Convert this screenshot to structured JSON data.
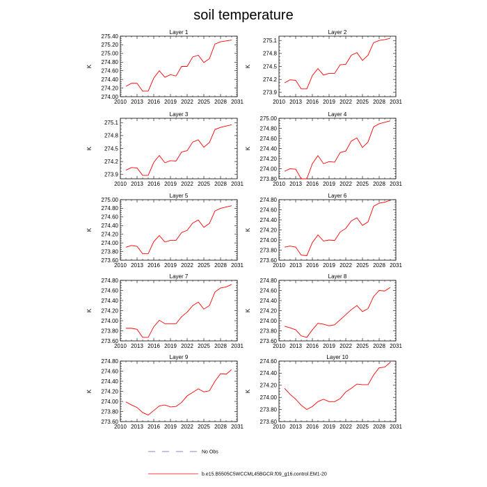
{
  "chart_data": {
    "type": "line",
    "title": "soil temperature",
    "x_ticks": [
      2010,
      2013,
      2016,
      2019,
      2022,
      2025,
      2028,
      2031
    ],
    "years": [
      2011,
      2012,
      2013,
      2014,
      2015,
      2016,
      2017,
      2018,
      2019,
      2020,
      2021,
      2022,
      2023,
      2024,
      2025,
      2026,
      2027,
      2028,
      2029,
      2030
    ],
    "series_color": "#ff0000",
    "legend": [
      {
        "label": "No Obs",
        "style": "dashed",
        "color": "#6060c0"
      },
      {
        "label": "b.e15.B5505C5WCCML45BGCR.f09_g16.control.EM1-20",
        "style": "solid",
        "color": "#ff0000"
      }
    ],
    "panels": [
      {
        "title": "Layer 1",
        "ylabel": "K",
        "ylim": [
          274.0,
          275.4
        ],
        "yticks": [
          "275.40",
          "275.20",
          "275.00",
          "274.80",
          "274.60",
          "274.40",
          "274.20",
          "274.00"
        ],
        "ytick_values": [
          275.4,
          275.2,
          275.0,
          274.8,
          274.6,
          274.4,
          274.2,
          274.0
        ],
        "values": [
          274.24,
          274.31,
          274.31,
          274.13,
          274.13,
          274.43,
          274.6,
          274.45,
          274.51,
          274.48,
          274.7,
          274.7,
          274.92,
          274.96,
          274.79,
          274.88,
          275.22,
          275.27,
          275.29,
          275.31
        ]
      },
      {
        "title": "Layer 2",
        "ylabel": "K",
        "ylim": [
          273.8,
          275.2
        ],
        "yticks": [
          "275.1",
          "274.8",
          "274.5",
          "274.2",
          "273.9"
        ],
        "ytick_values": [
          275.1,
          274.8,
          274.5,
          274.2,
          273.9
        ],
        "values": [
          274.12,
          274.19,
          274.18,
          273.98,
          273.98,
          274.29,
          274.45,
          274.3,
          274.34,
          274.34,
          274.54,
          274.55,
          274.76,
          274.82,
          274.64,
          274.76,
          275.05,
          275.1,
          275.12,
          275.15
        ]
      },
      {
        "title": "Layer 3",
        "ylabel": "K",
        "ylim": [
          273.8,
          275.2
        ],
        "yticks": [
          "275.1",
          "274.8",
          "274.5",
          "274.2",
          "273.9"
        ],
        "ytick_values": [
          275.1,
          274.8,
          274.5,
          274.2,
          273.9
        ],
        "values": [
          274.0,
          274.06,
          274.05,
          273.88,
          273.88,
          274.18,
          274.34,
          274.17,
          274.22,
          274.21,
          274.42,
          274.45,
          274.65,
          274.7,
          274.53,
          274.64,
          274.94,
          274.99,
          275.02,
          275.05
        ]
      },
      {
        "title": "Layer 4",
        "ylabel": "K",
        "ylim": [
          273.8,
          275.0
        ],
        "yticks": [
          "275.00",
          "274.80",
          "274.60",
          "274.40",
          "274.20",
          "274.00",
          "273.80"
        ],
        "ytick_values": [
          275.0,
          274.8,
          274.6,
          274.4,
          274.2,
          274.0,
          273.8
        ],
        "values": [
          273.95,
          274.0,
          273.99,
          273.8,
          273.8,
          274.1,
          274.26,
          274.1,
          274.14,
          274.13,
          274.32,
          274.35,
          274.55,
          274.61,
          274.42,
          274.53,
          274.83,
          274.89,
          274.92,
          274.95
        ]
      },
      {
        "title": "Layer 5",
        "ylabel": "K",
        "ylim": [
          273.6,
          275.0
        ],
        "yticks": [
          "275.00",
          "274.80",
          "274.60",
          "274.40",
          "274.20",
          "274.00",
          "273.80",
          "273.60"
        ],
        "ytick_values": [
          275.0,
          274.8,
          274.6,
          274.4,
          274.2,
          274.0,
          273.8,
          273.6
        ],
        "values": [
          273.9,
          273.94,
          273.92,
          273.75,
          273.75,
          274.03,
          274.17,
          274.02,
          274.06,
          274.06,
          274.24,
          274.29,
          274.46,
          274.53,
          274.36,
          274.45,
          274.74,
          274.8,
          274.83,
          274.86
        ]
      },
      {
        "title": "Layer 6",
        "ylabel": "K",
        "ylim": [
          273.6,
          274.8
        ],
        "yticks": [
          "274.80",
          "274.60",
          "274.40",
          "274.20",
          "274.00",
          "273.80",
          "273.60"
        ],
        "ytick_values": [
          274.8,
          274.6,
          274.4,
          274.2,
          274.0,
          273.8,
          273.6
        ],
        "values": [
          273.86,
          273.88,
          273.86,
          273.7,
          273.69,
          273.95,
          274.1,
          273.98,
          274.0,
          273.99,
          274.16,
          274.23,
          274.38,
          274.44,
          274.29,
          274.36,
          274.67,
          274.73,
          274.75,
          274.79
        ]
      },
      {
        "title": "Layer 7",
        "ylabel": "K",
        "ylim": [
          273.6,
          274.8
        ],
        "yticks": [
          "274.80",
          "274.60",
          "274.40",
          "274.20",
          "274.00",
          "273.80",
          "273.60"
        ],
        "ytick_values": [
          274.8,
          274.6,
          274.4,
          274.2,
          274.0,
          273.8,
          273.6
        ],
        "values": [
          273.85,
          273.85,
          273.83,
          273.67,
          273.67,
          273.88,
          274.01,
          273.94,
          273.94,
          273.94,
          274.08,
          274.17,
          274.3,
          274.37,
          274.23,
          274.3,
          274.57,
          274.65,
          274.67,
          274.72
        ]
      },
      {
        "title": "Layer 8",
        "ylabel": "K",
        "ylim": [
          273.6,
          274.8
        ],
        "yticks": [
          "274.80",
          "274.60",
          "274.40",
          "274.20",
          "274.00",
          "273.80",
          "273.60"
        ],
        "ytick_values": [
          274.8,
          274.6,
          274.4,
          274.2,
          274.0,
          273.8,
          273.6
        ],
        "values": [
          273.89,
          273.86,
          273.82,
          273.7,
          273.67,
          273.82,
          273.95,
          273.93,
          273.9,
          273.92,
          274.02,
          274.12,
          274.22,
          274.3,
          274.18,
          274.24,
          274.48,
          274.6,
          274.59,
          274.66
        ]
      },
      {
        "title": "Layer 9",
        "ylabel": "K",
        "ylim": [
          273.6,
          274.8
        ],
        "yticks": [
          "274.80",
          "274.60",
          "274.40",
          "274.20",
          "274.00",
          "273.80",
          "273.60"
        ],
        "ytick_values": [
          274.8,
          274.6,
          274.4,
          274.2,
          274.0,
          273.8,
          273.6
        ],
        "values": [
          273.99,
          273.93,
          273.88,
          273.78,
          273.73,
          273.82,
          273.91,
          273.93,
          273.89,
          273.9,
          273.98,
          274.11,
          274.18,
          274.25,
          274.19,
          274.21,
          274.4,
          274.55,
          274.54,
          274.63
        ]
      },
      {
        "title": "Layer 10",
        "ylabel": "K",
        "ylim": [
          273.6,
          274.6
        ],
        "yticks": [
          "274.60",
          "274.40",
          "274.20",
          "274.00",
          "273.80",
          "273.60"
        ],
        "ytick_values": [
          274.6,
          274.4,
          274.2,
          274.0,
          273.8,
          273.6
        ],
        "values": [
          274.15,
          274.05,
          273.97,
          273.87,
          273.8,
          273.85,
          273.93,
          273.97,
          273.93,
          273.93,
          273.98,
          274.09,
          274.15,
          274.22,
          274.21,
          274.21,
          274.37,
          274.49,
          274.5,
          274.58
        ]
      }
    ]
  }
}
